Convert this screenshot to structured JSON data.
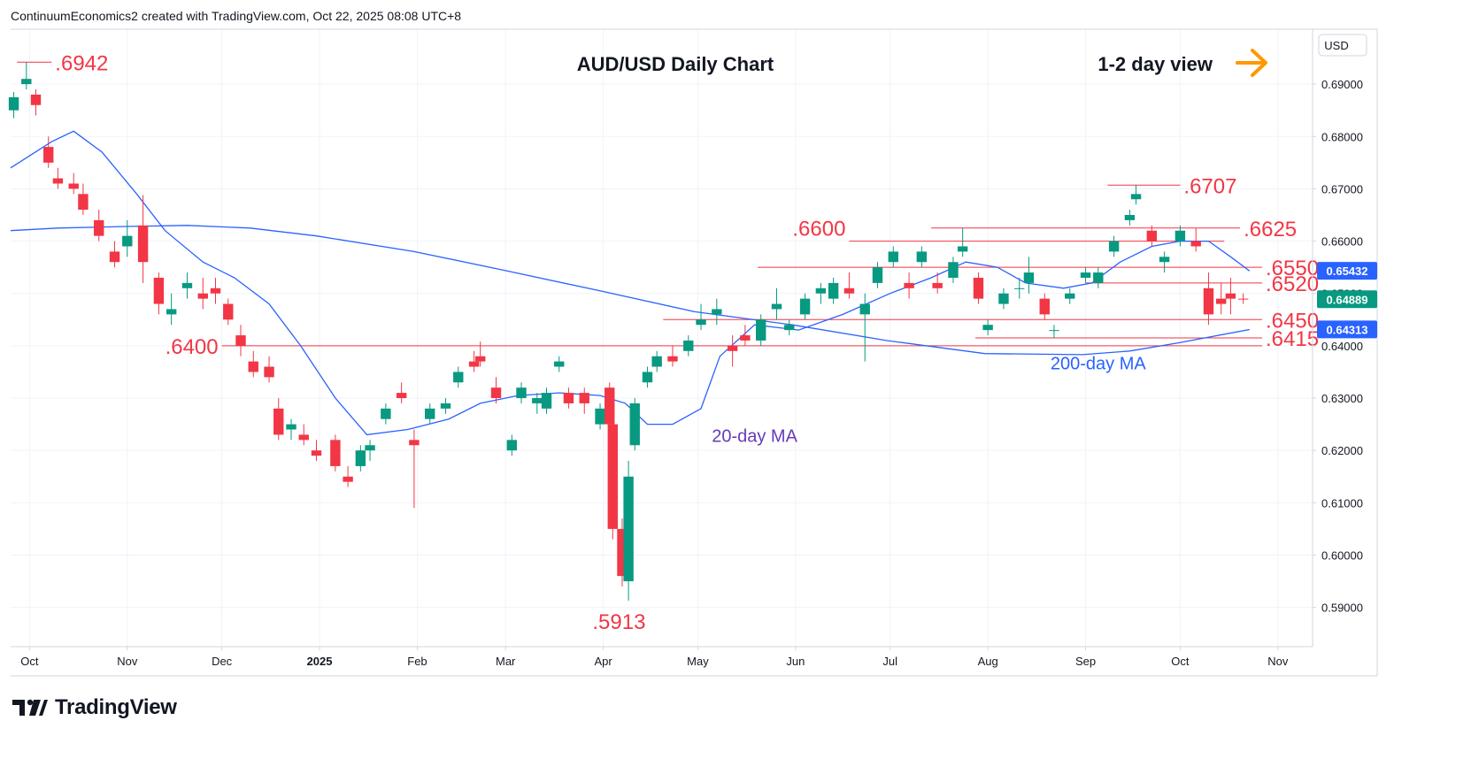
{
  "header": {
    "attribution": "ContinuumEconomics2 created with TradingView.com, Oct 22, 2025 08:08 UTC+8"
  },
  "footer": {
    "brand": "TradingView"
  },
  "colors": {
    "up": "#089981",
    "down": "#f23645",
    "ma": "#2962ff",
    "level": "#f23645",
    "label_red": "#f23645",
    "ma20_label": "#673ab7",
    "ma200_label": "#2962ff",
    "arrow": "#ff9800",
    "grid": "#f0f3fa"
  },
  "chart_data": {
    "type": "candlestick",
    "title": "AUD/USD Daily Chart",
    "subtitle": "1-2 day view",
    "view_arrow_icon": "right-arrow-icon",
    "ylabel": "USD",
    "ylim": [
      0.5825,
      0.7005
    ],
    "xlim": [
      "2024-09-25",
      "2025-11-12"
    ],
    "y_ticks": [
      "0.59000",
      "0.60000",
      "0.61000",
      "0.62000",
      "0.63000",
      "0.64000",
      "0.65000",
      "0.66000",
      "0.67000",
      "0.68000",
      "0.69000"
    ],
    "x_ticks": [
      {
        "label": "Oct",
        "date": "2024-10-01",
        "bold": false
      },
      {
        "label": "Nov",
        "date": "2024-11-01",
        "bold": false
      },
      {
        "label": "Dec",
        "date": "2024-12-01",
        "bold": false
      },
      {
        "label": "2025",
        "date": "2025-01-01",
        "bold": true
      },
      {
        "label": "Feb",
        "date": "2025-02-01",
        "bold": false
      },
      {
        "label": "Mar",
        "date": "2025-03-01",
        "bold": false
      },
      {
        "label": "Apr",
        "date": "2025-04-01",
        "bold": false
      },
      {
        "label": "May",
        "date": "2025-05-01",
        "bold": false
      },
      {
        "label": "Jun",
        "date": "2025-06-01",
        "bold": false
      },
      {
        "label": "Jul",
        "date": "2025-07-01",
        "bold": false
      },
      {
        "label": "Aug",
        "date": "2025-08-01",
        "bold": false
      },
      {
        "label": "Sep",
        "date": "2025-09-01",
        "bold": false
      },
      {
        "label": "Oct",
        "date": "2025-10-01",
        "bold": false
      },
      {
        "label": "Nov",
        "date": "2025-11-01",
        "bold": false
      }
    ],
    "price_tags": [
      {
        "text": "0.65432",
        "value": 0.65432,
        "color": "#2962ff"
      },
      {
        "text": "0.64889",
        "value": 0.64889,
        "color": "#089981"
      },
      {
        "text": "0.64313",
        "value": 0.64313,
        "color": "#2962ff"
      }
    ],
    "levels": [
      {
        "label": ".6942",
        "value": 0.6942,
        "from": "2024-09-27",
        "to": "2024-10-08",
        "label_date": "2024-10-08",
        "label_side": "right"
      },
      {
        "label": ".6707",
        "value": 0.6707,
        "from": "2025-09-08",
        "to": "2025-10-01",
        "label_date": "2025-10-01",
        "label_side": "right"
      },
      {
        "label": ".6625",
        "value": 0.6625,
        "from": "2025-07-14",
        "to": "2025-10-20",
        "label_date": "2025-10-20",
        "label_side": "right"
      },
      {
        "label": ".6600",
        "value": 0.66,
        "from": "2025-06-18",
        "to": "2025-10-15",
        "label_date": "2025-06-18",
        "label_side": "left"
      },
      {
        "label": ".6550",
        "value": 0.655,
        "from": "2025-05-20",
        "to": "2025-10-27",
        "label_date": "2025-10-27",
        "label_side": "right"
      },
      {
        "label": ".6520",
        "value": 0.652,
        "from": "2025-09-01",
        "to": "2025-10-27",
        "label_date": "2025-10-27",
        "label_side": "right"
      },
      {
        "label": ".6450",
        "value": 0.645,
        "from": "2025-04-20",
        "to": "2025-10-27",
        "label_date": "2025-10-27",
        "label_side": "right"
      },
      {
        "label": ".6415",
        "value": 0.6415,
        "from": "2025-07-28",
        "to": "2025-10-27",
        "label_date": "2025-10-27",
        "label_side": "right"
      },
      {
        "label": ".6400",
        "value": 0.64,
        "from": "2024-12-01",
        "to": "2025-10-27",
        "label_date": "2024-12-01",
        "label_side": "left"
      },
      {
        "label": ".5913",
        "value": 0.5913,
        "from": null,
        "to": null,
        "label_date": "2025-04-06",
        "label_side": "below"
      }
    ],
    "annotations": [
      {
        "text": "20-day MA",
        "date": "2025-05-19",
        "value": 0.6216,
        "color": "#673ab7"
      },
      {
        "text": "200-day MA",
        "date": "2025-09-05",
        "value": 0.6355,
        "color": "#2962ff"
      }
    ],
    "ohlc_columns": [
      "date",
      "open",
      "high",
      "low",
      "close"
    ],
    "ohlc": [
      [
        "2024-09-26",
        0.685,
        0.6885,
        0.6835,
        0.6875
      ],
      [
        "2024-09-30",
        0.69,
        0.6942,
        0.689,
        0.691
      ],
      [
        "2024-10-03",
        0.688,
        0.689,
        0.684,
        0.686
      ],
      [
        "2024-10-07",
        0.678,
        0.68,
        0.674,
        0.675
      ],
      [
        "2024-10-10",
        0.672,
        0.674,
        0.67,
        0.671
      ],
      [
        "2024-10-15",
        0.671,
        0.673,
        0.669,
        0.67
      ],
      [
        "2024-10-18",
        0.669,
        0.671,
        0.665,
        0.666
      ],
      [
        "2024-10-23",
        0.664,
        0.666,
        0.66,
        0.661
      ],
      [
        "2024-10-28",
        0.658,
        0.66,
        0.655,
        0.656
      ],
      [
        "2024-11-01",
        0.659,
        0.664,
        0.657,
        0.661
      ],
      [
        "2024-11-06",
        0.663,
        0.6688,
        0.652,
        0.656
      ],
      [
        "2024-11-11",
        0.653,
        0.654,
        0.646,
        0.648
      ],
      [
        "2024-11-15",
        0.646,
        0.65,
        0.644,
        0.647
      ],
      [
        "2024-11-20",
        0.651,
        0.654,
        0.649,
        0.652
      ],
      [
        "2024-11-25",
        0.65,
        0.653,
        0.647,
        0.649
      ],
      [
        "2024-11-29",
        0.651,
        0.653,
        0.648,
        0.65
      ],
      [
        "2024-12-03",
        0.648,
        0.649,
        0.644,
        0.645
      ],
      [
        "2024-12-07",
        0.642,
        0.644,
        0.638,
        0.64
      ],
      [
        "2024-12-11",
        0.637,
        0.639,
        0.634,
        0.635
      ],
      [
        "2024-12-16",
        0.636,
        0.638,
        0.633,
        0.634
      ],
      [
        "2024-12-19",
        0.628,
        0.63,
        0.622,
        0.623
      ],
      [
        "2024-12-23",
        0.624,
        0.626,
        0.622,
        0.625
      ],
      [
        "2024-12-27",
        0.623,
        0.625,
        0.621,
        0.622
      ],
      [
        "2024-12-31",
        0.62,
        0.622,
        0.618,
        0.619
      ],
      [
        "2025-01-06",
        0.622,
        0.623,
        0.616,
        0.617
      ],
      [
        "2025-01-10",
        0.615,
        0.617,
        0.613,
        0.614
      ],
      [
        "2025-01-14",
        0.617,
        0.621,
        0.616,
        0.62
      ],
      [
        "2025-01-17",
        0.62,
        0.622,
        0.618,
        0.621
      ],
      [
        "2025-01-22",
        0.626,
        0.629,
        0.625,
        0.628
      ],
      [
        "2025-01-27",
        0.631,
        0.633,
        0.629,
        0.63
      ],
      [
        "2025-01-31",
        0.622,
        0.624,
        0.609,
        0.621
      ],
      [
        "2025-02-05",
        0.626,
        0.629,
        0.625,
        0.628
      ],
      [
        "2025-02-10",
        0.628,
        0.63,
        0.627,
        0.629
      ],
      [
        "2025-02-14",
        0.633,
        0.636,
        0.632,
        0.635
      ],
      [
        "2025-02-19",
        0.637,
        0.639,
        0.635,
        0.636
      ],
      [
        "2025-02-21",
        0.638,
        0.6408,
        0.636,
        0.637
      ],
      [
        "2025-02-26",
        0.632,
        0.634,
        0.629,
        0.63
      ],
      [
        "2025-03-03",
        0.62,
        0.623,
        0.619,
        0.622
      ],
      [
        "2025-03-06",
        0.63,
        0.633,
        0.629,
        0.632
      ],
      [
        "2025-03-11",
        0.629,
        0.631,
        0.627,
        0.63
      ],
      [
        "2025-03-14",
        0.628,
        0.632,
        0.627,
        0.631
      ],
      [
        "2025-03-18",
        0.636,
        0.638,
        0.635,
        0.637
      ],
      [
        "2025-03-21",
        0.631,
        0.632,
        0.628,
        0.629
      ],
      [
        "2025-03-26",
        0.631,
        0.632,
        0.627,
        0.629
      ],
      [
        "2025-03-31",
        0.625,
        0.629,
        0.624,
        0.628
      ],
      [
        "2025-04-03",
        0.632,
        0.633,
        0.623,
        0.625
      ],
      [
        "2025-04-04",
        0.625,
        0.626,
        0.603,
        0.605
      ],
      [
        "2025-04-07",
        0.605,
        0.607,
        0.594,
        0.596
      ],
      [
        "2025-04-09",
        0.595,
        0.618,
        0.5913,
        0.615
      ],
      [
        "2025-04-11",
        0.621,
        0.63,
        0.62,
        0.629
      ],
      [
        "2025-04-15",
        0.633,
        0.636,
        0.632,
        0.635
      ],
      [
        "2025-04-18",
        0.636,
        0.639,
        0.635,
        0.638
      ],
      [
        "2025-04-23",
        0.638,
        0.64,
        0.636,
        0.637
      ],
      [
        "2025-04-28",
        0.639,
        0.642,
        0.638,
        0.641
      ],
      [
        "2025-05-02",
        0.644,
        0.648,
        0.643,
        0.645
      ],
      [
        "2025-05-07",
        0.646,
        0.649,
        0.644,
        0.647
      ],
      [
        "2025-05-12",
        0.64,
        0.642,
        0.636,
        0.639
      ],
      [
        "2025-05-16",
        0.642,
        0.644,
        0.64,
        0.641
      ],
      [
        "2025-05-21",
        0.641,
        0.646,
        0.64,
        0.645
      ],
      [
        "2025-05-26",
        0.647,
        0.651,
        0.645,
        0.648
      ],
      [
        "2025-05-30",
        0.643,
        0.645,
        0.642,
        0.644
      ],
      [
        "2025-06-04",
        0.646,
        0.65,
        0.645,
        0.649
      ],
      [
        "2025-06-09",
        0.65,
        0.652,
        0.648,
        0.651
      ],
      [
        "2025-06-13",
        0.649,
        0.653,
        0.648,
        0.652
      ],
      [
        "2025-06-18",
        0.651,
        0.654,
        0.649,
        0.65
      ],
      [
        "2025-06-23",
        0.646,
        0.65,
        0.637,
        0.648
      ],
      [
        "2025-06-27",
        0.652,
        0.656,
        0.651,
        0.655
      ],
      [
        "2025-07-02",
        0.656,
        0.659,
        0.655,
        0.658
      ],
      [
        "2025-07-07",
        0.652,
        0.654,
        0.649,
        0.651
      ],
      [
        "2025-07-11",
        0.656,
        0.659,
        0.655,
        0.658
      ],
      [
        "2025-07-16",
        0.652,
        0.654,
        0.65,
        0.651
      ],
      [
        "2025-07-21",
        0.653,
        0.657,
        0.652,
        0.656
      ],
      [
        "2025-07-24",
        0.658,
        0.6625,
        0.657,
        0.659
      ],
      [
        "2025-07-29",
        0.653,
        0.654,
        0.648,
        0.649
      ],
      [
        "2025-08-01",
        0.643,
        0.645,
        0.642,
        0.644
      ],
      [
        "2025-08-06",
        0.648,
        0.651,
        0.647,
        0.65
      ],
      [
        "2025-08-11",
        0.651,
        0.653,
        0.649,
        0.651
      ],
      [
        "2025-08-14",
        0.652,
        0.657,
        0.65,
        0.654
      ],
      [
        "2025-08-19",
        0.649,
        0.65,
        0.645,
        0.646
      ],
      [
        "2025-08-22",
        0.643,
        0.644,
        0.6415,
        0.643
      ],
      [
        "2025-08-27",
        0.649,
        0.651,
        0.648,
        0.65
      ],
      [
        "2025-09-01",
        0.653,
        0.655,
        0.652,
        0.654
      ],
      [
        "2025-09-05",
        0.652,
        0.655,
        0.651,
        0.654
      ],
      [
        "2025-09-10",
        0.658,
        0.661,
        0.657,
        0.66
      ],
      [
        "2025-09-15",
        0.664,
        0.666,
        0.663,
        0.665
      ],
      [
        "2025-09-17",
        0.668,
        0.6707,
        0.667,
        0.669
      ],
      [
        "2025-09-22",
        0.662,
        0.663,
        0.659,
        0.66
      ],
      [
        "2025-09-26",
        0.656,
        0.658,
        0.654,
        0.657
      ],
      [
        "2025-10-01",
        0.66,
        0.663,
        0.659,
        0.662
      ],
      [
        "2025-10-06",
        0.66,
        0.6625,
        0.658,
        0.659
      ],
      [
        "2025-10-10",
        0.651,
        0.654,
        0.644,
        0.646
      ],
      [
        "2025-10-14",
        0.649,
        0.652,
        0.646,
        0.648
      ],
      [
        "2025-10-17",
        0.65,
        0.653,
        0.646,
        0.649
      ],
      [
        "2025-10-21",
        0.649,
        0.65,
        0.648,
        0.6489
      ]
    ],
    "series": [
      {
        "name": "20-day MA",
        "color": "#2962ff",
        "points": [
          [
            "2024-09-25",
            0.674
          ],
          [
            "2024-10-08",
            0.679
          ],
          [
            "2024-10-15",
            0.681
          ],
          [
            "2024-10-24",
            0.677
          ],
          [
            "2024-11-04",
            0.669
          ],
          [
            "2024-11-13",
            0.662
          ],
          [
            "2024-11-25",
            0.656
          ],
          [
            "2024-12-05",
            0.653
          ],
          [
            "2024-12-16",
            0.648
          ],
          [
            "2024-12-26",
            0.64
          ],
          [
            "2025-01-06",
            0.63
          ],
          [
            "2025-01-16",
            0.623
          ],
          [
            "2025-01-29",
            0.624
          ],
          [
            "2025-02-11",
            0.626
          ],
          [
            "2025-02-21",
            0.629
          ],
          [
            "2025-03-05",
            0.6305
          ],
          [
            "2025-03-18",
            0.631
          ],
          [
            "2025-03-31",
            0.6305
          ],
          [
            "2025-04-08",
            0.629
          ],
          [
            "2025-04-15",
            0.625
          ],
          [
            "2025-04-23",
            0.625
          ],
          [
            "2025-05-02",
            0.628
          ],
          [
            "2025-05-08",
            0.638
          ],
          [
            "2025-05-19",
            0.644
          ],
          [
            "2025-06-02",
            0.643
          ],
          [
            "2025-06-16",
            0.646
          ],
          [
            "2025-07-01",
            0.65
          ],
          [
            "2025-07-14",
            0.653
          ],
          [
            "2025-07-25",
            0.656
          ],
          [
            "2025-08-04",
            0.655
          ],
          [
            "2025-08-13",
            0.652
          ],
          [
            "2025-08-25",
            0.651
          ],
          [
            "2025-09-03",
            0.652
          ],
          [
            "2025-09-12",
            0.656
          ],
          [
            "2025-09-22",
            0.659
          ],
          [
            "2025-10-01",
            0.66
          ],
          [
            "2025-10-10",
            0.66
          ],
          [
            "2025-10-17",
            0.657
          ],
          [
            "2025-10-23",
            0.6543
          ]
        ]
      },
      {
        "name": "200-day MA",
        "color": "#2962ff",
        "points": [
          [
            "2024-09-25",
            0.662
          ],
          [
            "2024-10-10",
            0.6625
          ],
          [
            "2024-11-01",
            0.6628
          ],
          [
            "2024-11-20",
            0.663
          ],
          [
            "2024-12-10",
            0.6625
          ],
          [
            "2024-12-31",
            0.661
          ],
          [
            "2025-01-31",
            0.658
          ],
          [
            "2025-02-28",
            0.6545
          ],
          [
            "2025-03-31",
            0.6505
          ],
          [
            "2025-04-30",
            0.6465
          ],
          [
            "2025-05-31",
            0.644
          ],
          [
            "2025-06-30",
            0.641
          ],
          [
            "2025-07-31",
            0.6385
          ],
          [
            "2025-08-31",
            0.6383
          ],
          [
            "2025-09-15",
            0.639
          ],
          [
            "2025-09-30",
            0.6405
          ],
          [
            "2025-10-23",
            0.6431
          ]
        ]
      }
    ]
  }
}
